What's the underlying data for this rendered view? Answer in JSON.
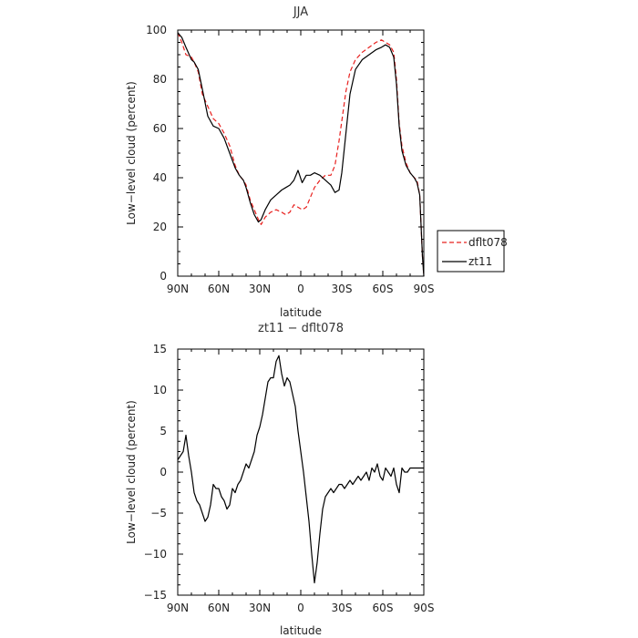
{
  "chart_data": [
    {
      "type": "line",
      "title": "JJA",
      "xlabel": "latitude",
      "ylabel": "Low−level cloud (percent)",
      "xlim": [
        90,
        -90
      ],
      "ylim": [
        0,
        100
      ],
      "xticks": [
        90,
        60,
        30,
        0,
        -30,
        -60,
        -90
      ],
      "xtick_labels": [
        "90N",
        "60N",
        "30N",
        "0",
        "30S",
        "60S",
        "90S"
      ],
      "yticks": [
        0,
        20,
        40,
        60,
        80,
        100
      ],
      "ytick_labels": [
        "0",
        "20",
        "40",
        "60",
        "80",
        "100"
      ],
      "legend_placement": "right",
      "series": [
        {
          "name": "dflt078",
          "color": "#e8201e",
          "dash": "dashed",
          "x": [
            90,
            87,
            84,
            80,
            78,
            75,
            72,
            68,
            64,
            60,
            56,
            52,
            48,
            45,
            42,
            40,
            37,
            34,
            31,
            29,
            26,
            22,
            18,
            14,
            11,
            8,
            5,
            2,
            -1,
            -4,
            -7,
            -10,
            -14,
            -18,
            -22,
            -25,
            -28,
            -30,
            -33,
            -36,
            -40,
            -45,
            -50,
            -55,
            -59,
            -62,
            -65,
            -68,
            -70,
            -72,
            -74,
            -77,
            -80,
            -83,
            -85,
            -87,
            -89,
            -90
          ],
          "y": [
            99,
            95,
            90,
            89,
            87,
            83,
            74,
            69,
            64,
            62,
            58,
            53,
            45,
            41,
            39,
            37,
            31,
            27,
            23,
            21,
            24,
            26,
            27,
            26,
            25,
            26,
            29,
            28,
            27,
            28,
            32,
            36,
            39,
            41,
            41,
            45,
            55,
            63,
            75,
            83,
            88,
            91,
            93,
            95,
            96,
            95,
            94,
            91,
            80,
            62,
            53,
            46,
            42,
            40,
            39,
            33,
            8,
            0
          ]
        },
        {
          "name": "zt11",
          "color": "#000000",
          "dash": "solid",
          "x": [
            90,
            87,
            84,
            80,
            78,
            75,
            72,
            68,
            64,
            60,
            56,
            52,
            48,
            45,
            42,
            40,
            37,
            34,
            31,
            29,
            26,
            22,
            18,
            14,
            11,
            8,
            5,
            2,
            -1,
            -4,
            -7,
            -10,
            -14,
            -18,
            -22,
            -25,
            -28,
            -30,
            -33,
            -36,
            -40,
            -45,
            -50,
            -55,
            -59,
            -62,
            -65,
            -68,
            -70,
            -72,
            -74,
            -77,
            -80,
            -83,
            -85,
            -87,
            -89,
            -90
          ],
          "y": [
            99,
            97,
            93,
            88,
            87,
            84,
            76,
            65,
            61,
            60,
            56,
            50,
            44,
            41,
            39,
            36,
            30,
            25,
            22,
            23,
            27,
            31,
            33,
            35,
            36,
            37,
            39,
            43,
            38,
            41,
            41,
            42,
            41,
            39,
            37,
            34,
            35,
            42,
            58,
            74,
            84,
            88,
            90,
            92,
            93,
            94,
            93,
            89,
            78,
            61,
            51,
            45,
            42,
            40,
            38,
            33,
            8,
            0
          ]
        }
      ]
    },
    {
      "type": "line",
      "title": "zt11 − dflt078",
      "xlabel": "latitude",
      "ylabel": "Low−level cloud (percent)",
      "xlim": [
        90,
        -90
      ],
      "ylim": [
        -15,
        15
      ],
      "xticks": [
        90,
        60,
        30,
        0,
        -30,
        -60,
        -90
      ],
      "xtick_labels": [
        "90N",
        "60N",
        "30N",
        "0",
        "30S",
        "60S",
        "90S"
      ],
      "yticks": [
        -15,
        -10,
        -5,
        0,
        5,
        10,
        15
      ],
      "ytick_labels": [
        "−15",
        "−10",
        "−5",
        "0",
        "5",
        "10",
        "15"
      ],
      "series": [
        {
          "color": "#000000",
          "dash": "solid",
          "x": [
            90,
            88,
            86,
            84,
            82,
            80,
            78,
            76,
            74,
            72,
            70,
            68,
            66,
            64,
            62,
            60,
            58,
            56,
            54,
            52,
            50,
            48,
            46,
            44,
            42,
            40,
            38,
            36,
            34,
            32,
            30,
            28,
            26,
            24,
            22,
            20,
            18,
            16,
            14,
            12,
            10,
            8,
            6,
            4,
            2,
            0,
            -2,
            -4,
            -6,
            -8,
            -10,
            -12,
            -14,
            -16,
            -18,
            -20,
            -22,
            -24,
            -26,
            -28,
            -30,
            -32,
            -34,
            -36,
            -38,
            -40,
            -42,
            -44,
            -46,
            -48,
            -50,
            -52,
            -54,
            -56,
            -58,
            -60,
            -62,
            -64,
            -66,
            -68,
            -70,
            -72,
            -74,
            -76,
            -78,
            -80,
            -82,
            -84,
            -86,
            -88,
            -90
          ],
          "y": [
            1.5,
            2.0,
            2.5,
            4.5,
            2.0,
            0.0,
            -2.5,
            -3.5,
            -4.0,
            -5.0,
            -6.0,
            -5.5,
            -4.0,
            -1.5,
            -2.0,
            -2.0,
            -3.0,
            -3.5,
            -4.5,
            -4.0,
            -2.0,
            -2.5,
            -1.5,
            -1.0,
            0.0,
            1.0,
            0.5,
            1.5,
            2.5,
            4.5,
            5.5,
            7.0,
            9.0,
            11.0,
            11.5,
            11.5,
            13.5,
            14.2,
            12.0,
            10.5,
            11.5,
            11.0,
            9.5,
            8.0,
            5.0,
            2.5,
            0.0,
            -3.0,
            -6.0,
            -10.0,
            -13.5,
            -11.0,
            -7.5,
            -4.5,
            -3.0,
            -2.5,
            -2.0,
            -2.5,
            -2.0,
            -1.5,
            -1.5,
            -2.0,
            -1.5,
            -1.0,
            -1.5,
            -1.0,
            -0.5,
            -1.0,
            -0.5,
            0.0,
            -1.0,
            0.5,
            0.0,
            1.0,
            -0.5,
            -1.0,
            0.5,
            0.0,
            -0.5,
            0.5,
            -1.5,
            -2.5,
            0.5,
            0.0,
            0.0,
            0.5,
            0.5,
            0.5,
            0.5,
            0.5,
            0.5
          ]
        }
      ]
    }
  ]
}
